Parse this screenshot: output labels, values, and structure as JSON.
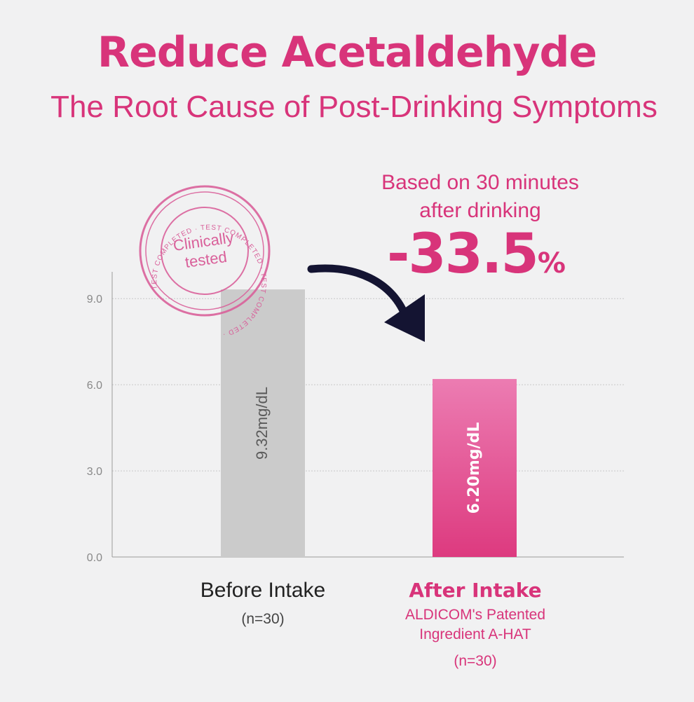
{
  "header": {
    "title": "Reduce Acetaldehyde",
    "subtitle": "The Root Cause of Post-Drinking Symptoms"
  },
  "callout": {
    "line1": "Based on 30 minutes",
    "line2": "after drinking",
    "value": "-33.5",
    "unit": "%"
  },
  "stamp": {
    "ring_text": "TEST COMPLETED · TEST COMPLETED · TEST COMPLETED ·",
    "center_line1": "Clinically",
    "center_line2": "tested"
  },
  "categories_text": {
    "before": {
      "name": "Before Intake",
      "n": "(n=30)"
    },
    "after": {
      "name": "After Intake",
      "sub1": "ALDICOM's Patented",
      "sub2": "Ingredient A-HAT",
      "n": "(n=30)"
    }
  },
  "colors": {
    "accent": "#d8347a",
    "before_bar": "#cbcbcb",
    "after_bar_top": "#ec7cb2",
    "after_bar_bottom": "#dd3a7f",
    "arrow": "#141432"
  },
  "chart_data": {
    "type": "bar",
    "categories": [
      "Before Intake",
      "After Intake"
    ],
    "values": [
      9.32,
      6.2
    ],
    "value_labels": [
      "9.32mg/dL",
      "6.20mg/dL"
    ],
    "yticks": [
      "0.0",
      "3.0",
      "6.0",
      "9.0"
    ],
    "ylim": [
      0,
      10.25
    ],
    "grid": true,
    "title": "",
    "xlabel": "",
    "ylabel": ""
  }
}
